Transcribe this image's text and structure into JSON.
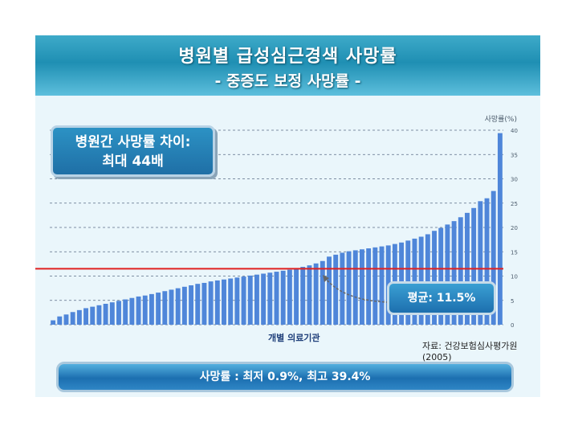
{
  "slide": {
    "title": "병원별 급성심근경색 사망률",
    "subtitle": "- 중증도 보정 사망률 -",
    "callout_line1": "병원간 사망률 차이:",
    "callout_line2": "최대 44배",
    "mean_label": "평균: 11.5%",
    "x_label": "개별 의료기관",
    "source": "자료: 건강보험심사평가원 (2005)",
    "summary": "사망률 : 최저 0.9%, 최고 39.4%"
  },
  "colors": {
    "bar": "#4f86d9",
    "mean_line": "#e02020",
    "grid": "#5a6e86"
  },
  "chart_data": {
    "type": "bar",
    "ylabel": "사망률(%)",
    "ylim": [
      0,
      40
    ],
    "yticks": [
      0,
      5,
      10,
      15,
      20,
      25,
      30,
      35,
      40
    ],
    "grid": true,
    "mean": 11.5,
    "xlabel": "개별 의료기관",
    "values": [
      0.9,
      1.7,
      2.1,
      2.6,
      3.0,
      3.4,
      3.7,
      4.0,
      4.3,
      4.6,
      4.9,
      5.2,
      5.5,
      5.8,
      6.0,
      6.3,
      6.6,
      6.9,
      7.2,
      7.5,
      7.8,
      8.1,
      8.4,
      8.6,
      8.9,
      9.1,
      9.3,
      9.5,
      9.7,
      9.9,
      10.1,
      10.3,
      10.5,
      10.7,
      10.9,
      11.1,
      11.3,
      11.6,
      11.9,
      12.2,
      12.6,
      13.1,
      14.0,
      14.4,
      14.8,
      15.1,
      15.3,
      15.5,
      15.7,
      15.9,
      16.1,
      16.3,
      16.6,
      16.9,
      17.3,
      17.7,
      18.1,
      18.6,
      19.3,
      19.9,
      20.6,
      21.3,
      22.1,
      23.0,
      24.0,
      25.4,
      26.0,
      27.5,
      39.4
    ]
  }
}
